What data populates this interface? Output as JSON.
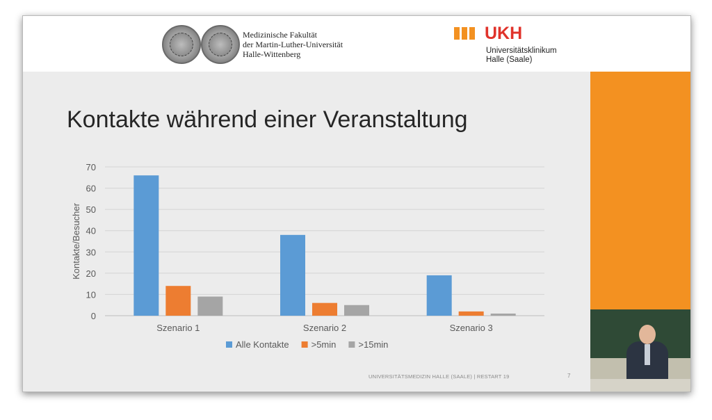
{
  "header": {
    "faculty_lines": [
      "Medizinische Fakultät",
      "der Martin-Luther-Universität",
      "Halle-Wittenberg"
    ],
    "ukh_logo": "UKH",
    "ukh_lines": [
      "Universitätsklinikum",
      "Halle (Saale)"
    ]
  },
  "slide": {
    "title": "Kontakte während einer Veranstaltung",
    "footer": "UNIVERSITÄTSMEDIZIN HALLE (SAALE) | RESTART 19",
    "page_number": "7"
  },
  "colors": {
    "accent_orange": "#f39121",
    "ukh_red": "#e0332b"
  },
  "chart_data": {
    "type": "bar",
    "title": "",
    "xlabel": "",
    "ylabel": "Kontakte/Besucher",
    "ylim": [
      0,
      70
    ],
    "yticks": [
      0,
      10,
      20,
      30,
      40,
      50,
      60,
      70
    ],
    "grid": true,
    "legend_position": "bottom",
    "categories": [
      "Szenario 1",
      "Szenario 2",
      "Szenario 3"
    ],
    "series": [
      {
        "name": "Alle Kontakte",
        "color": "#5b9bd5",
        "values": [
          66,
          38,
          19
        ]
      },
      {
        "name": ">5min",
        "color": "#ed7d31",
        "values": [
          14,
          6,
          2
        ]
      },
      {
        "name": ">15min",
        "color": "#a5a5a5",
        "values": [
          9,
          5,
          1
        ]
      }
    ]
  }
}
